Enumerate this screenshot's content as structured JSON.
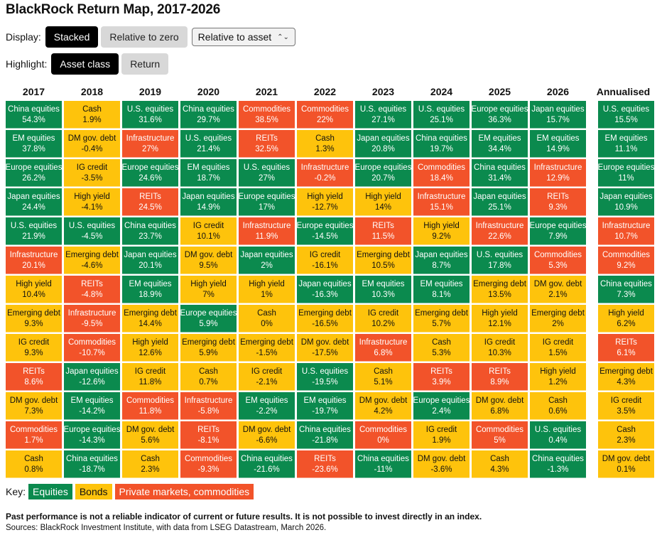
{
  "title": "BlackRock Return Map, 2017-2026",
  "controls": {
    "display_label": "Display:",
    "display_options": [
      "Stacked",
      "Relative to zero"
    ],
    "display_selected": "Stacked",
    "relative_select_value": "Relative to asset",
    "highlight_label": "Highlight:",
    "highlight_options": [
      "Asset class",
      "Return"
    ],
    "highlight_selected": "Asset class"
  },
  "colors": {
    "equities": "#0b8a4e",
    "bonds": "#fec30c",
    "private": "#f2532a"
  },
  "key": {
    "label": "Key:",
    "items": [
      {
        "label": "Equities",
        "type": "equities"
      },
      {
        "label": "Bonds",
        "type": "bonds"
      },
      {
        "label": "Private markets, commodities",
        "type": "private"
      }
    ]
  },
  "footnote": "Past performance is not a reliable indicator of current or future results. It is not possible to invest directly in an index.",
  "source": "Sources: BlackRock Investment Institute, with data from LSEG Datastream, March 2026.",
  "chart_data": {
    "type": "table",
    "columns": [
      "2017",
      "2018",
      "2019",
      "2020",
      "2021",
      "2022",
      "2023",
      "2024",
      "2025",
      "2026",
      "Annualised"
    ],
    "asset_types": {
      "China equities": "equities",
      "EM equities": "equities",
      "Europe equities": "equities",
      "Japan equities": "equities",
      "U.S. equities": "equities",
      "Cash": "bonds",
      "DM gov. debt": "bonds",
      "IG credit": "bonds",
      "High yield": "bonds",
      "Emerging debt": "bonds",
      "Infrastructure": "private",
      "REITs": "private",
      "Commodities": "private"
    },
    "data": [
      [
        [
          "China equities",
          "54.3%"
        ],
        [
          "EM equities",
          "37.8%"
        ],
        [
          "Europe equities",
          "26.2%"
        ],
        [
          "Japan equities",
          "24.4%"
        ],
        [
          "U.S. equities",
          "21.9%"
        ],
        [
          "Infrastructure",
          "20.1%"
        ],
        [
          "High yield",
          "10.4%"
        ],
        [
          "Emerging debt",
          "9.3%"
        ],
        [
          "IG credit",
          "9.3%"
        ],
        [
          "REITs",
          "8.6%"
        ],
        [
          "DM gov. debt",
          "7.3%"
        ],
        [
          "Commodities",
          "1.7%"
        ],
        [
          "Cash",
          "0.8%"
        ]
      ],
      [
        [
          "Cash",
          "1.9%"
        ],
        [
          "DM gov. debt",
          "-0.4%"
        ],
        [
          "IG credit",
          "-3.5%"
        ],
        [
          "High yield",
          "-4.1%"
        ],
        [
          "U.S. equities",
          "-4.5%"
        ],
        [
          "Emerging debt",
          "-4.6%"
        ],
        [
          "REITs",
          "-4.8%"
        ],
        [
          "Infrastructure",
          "-9.5%"
        ],
        [
          "Commodities",
          "-10.7%"
        ],
        [
          "Japan equities",
          "-12.6%"
        ],
        [
          "EM equities",
          "-14.2%"
        ],
        [
          "Europe equities",
          "-14.3%"
        ],
        [
          "China equities",
          "-18.7%"
        ]
      ],
      [
        [
          "U.S. equities",
          "31.6%"
        ],
        [
          "Infrastructure",
          "27%"
        ],
        [
          "Europe equities",
          "24.6%"
        ],
        [
          "REITs",
          "24.5%"
        ],
        [
          "China equities",
          "23.7%"
        ],
        [
          "Japan equities",
          "20.1%"
        ],
        [
          "EM equities",
          "18.9%"
        ],
        [
          "Emerging debt",
          "14.4%"
        ],
        [
          "High yield",
          "12.6%"
        ],
        [
          "IG credit",
          "11.8%"
        ],
        [
          "Commodities",
          "11.8%"
        ],
        [
          "DM gov. debt",
          "5.6%"
        ],
        [
          "Cash",
          "2.3%"
        ]
      ],
      [
        [
          "China equities",
          "29.7%"
        ],
        [
          "U.S. equities",
          "21.4%"
        ],
        [
          "EM equities",
          "18.7%"
        ],
        [
          "Japan equities",
          "14.9%"
        ],
        [
          "IG credit",
          "10.1%"
        ],
        [
          "DM gov. debt",
          "9.5%"
        ],
        [
          "High yield",
          "7%"
        ],
        [
          "Europe equities",
          "5.9%"
        ],
        [
          "Emerging debt",
          "5.9%"
        ],
        [
          "Cash",
          "0.7%"
        ],
        [
          "Infrastructure",
          "-5.8%"
        ],
        [
          "REITs",
          "-8.1%"
        ],
        [
          "Commodities",
          "-9.3%"
        ]
      ],
      [
        [
          "Commodities",
          "38.5%"
        ],
        [
          "REITs",
          "32.5%"
        ],
        [
          "U.S. equities",
          "27%"
        ],
        [
          "Europe equities",
          "17%"
        ],
        [
          "Infrastructure",
          "11.9%"
        ],
        [
          "Japan equities",
          "2%"
        ],
        [
          "High yield",
          "1%"
        ],
        [
          "Cash",
          "0%"
        ],
        [
          "Emerging debt",
          "-1.5%"
        ],
        [
          "IG credit",
          "-2.1%"
        ],
        [
          "EM equities",
          "-2.2%"
        ],
        [
          "DM gov. debt",
          "-6.6%"
        ],
        [
          "China equities",
          "-21.6%"
        ]
      ],
      [
        [
          "Commodities",
          "22%"
        ],
        [
          "Cash",
          "1.3%"
        ],
        [
          "Infrastructure",
          "-0.2%"
        ],
        [
          "High yield",
          "-12.7%"
        ],
        [
          "Europe equities",
          "-14.5%"
        ],
        [
          "IG credit",
          "-16.1%"
        ],
        [
          "Japan equities",
          "-16.3%"
        ],
        [
          "Emerging debt",
          "-16.5%"
        ],
        [
          "DM gov. debt",
          "-17.5%"
        ],
        [
          "U.S. equities",
          "-19.5%"
        ],
        [
          "EM equities",
          "-19.7%"
        ],
        [
          "China equities",
          "-21.8%"
        ],
        [
          "REITs",
          "-23.6%"
        ]
      ],
      [
        [
          "U.S. equities",
          "27.1%"
        ],
        [
          "Japan equities",
          "20.8%"
        ],
        [
          "Europe equities",
          "20.7%"
        ],
        [
          "High yield",
          "14%"
        ],
        [
          "REITs",
          "11.5%"
        ],
        [
          "Emerging debt",
          "10.5%"
        ],
        [
          "EM equities",
          "10.3%"
        ],
        [
          "IG credit",
          "10.2%"
        ],
        [
          "Infrastructure",
          "6.8%"
        ],
        [
          "Cash",
          "5.1%"
        ],
        [
          "DM gov. debt",
          "4.2%"
        ],
        [
          "Commodities",
          "0%"
        ],
        [
          "China equities",
          "-11%"
        ]
      ],
      [
        [
          "U.S. equities",
          "25.1%"
        ],
        [
          "China equities",
          "19.7%"
        ],
        [
          "Commodities",
          "18.4%"
        ],
        [
          "Infrastructure",
          "15.1%"
        ],
        [
          "High yield",
          "9.2%"
        ],
        [
          "Japan equities",
          "8.7%"
        ],
        [
          "EM equities",
          "8.1%"
        ],
        [
          "Emerging debt",
          "5.7%"
        ],
        [
          "Cash",
          "5.3%"
        ],
        [
          "REITs",
          "3.9%"
        ],
        [
          "Europe equities",
          "2.4%"
        ],
        [
          "IG credit",
          "1.9%"
        ],
        [
          "DM gov. debt",
          "-3.6%"
        ]
      ],
      [
        [
          "Europe equities",
          "36.3%"
        ],
        [
          "EM equities",
          "34.4%"
        ],
        [
          "China equities",
          "31.4%"
        ],
        [
          "Japan equities",
          "25.1%"
        ],
        [
          "Infrastructure",
          "22.6%"
        ],
        [
          "U.S. equities",
          "17.8%"
        ],
        [
          "Emerging debt",
          "13.5%"
        ],
        [
          "High yield",
          "12.1%"
        ],
        [
          "IG credit",
          "10.3%"
        ],
        [
          "REITs",
          "8.9%"
        ],
        [
          "DM gov. debt",
          "6.8%"
        ],
        [
          "Commodities",
          "5%"
        ],
        [
          "Cash",
          "4.3%"
        ]
      ],
      [
        [
          "Japan equities",
          "15.7%"
        ],
        [
          "EM equities",
          "14.9%"
        ],
        [
          "Infrastructure",
          "12.9%"
        ],
        [
          "REITs",
          "9.3%"
        ],
        [
          "Europe equities",
          "7.9%"
        ],
        [
          "Commodities",
          "5.3%"
        ],
        [
          "DM gov. debt",
          "2.1%"
        ],
        [
          "Emerging debt",
          "2%"
        ],
        [
          "IG credit",
          "1.5%"
        ],
        [
          "High yield",
          "1.2%"
        ],
        [
          "Cash",
          "0.6%"
        ],
        [
          "U.S. equities",
          "0.4%"
        ],
        [
          "China equities",
          "-1.3%"
        ]
      ],
      [
        [
          "U.S. equities",
          "15.5%"
        ],
        [
          "EM equities",
          "11.1%"
        ],
        [
          "Europe equities",
          "11%"
        ],
        [
          "Japan equities",
          "10.9%"
        ],
        [
          "Infrastructure",
          "10.7%"
        ],
        [
          "Commodities",
          "9.2%"
        ],
        [
          "China equities",
          "7.3%"
        ],
        [
          "High yield",
          "6.2%"
        ],
        [
          "REITs",
          "6.1%"
        ],
        [
          "Emerging debt",
          "4.3%"
        ],
        [
          "IG credit",
          "3.5%"
        ],
        [
          "Cash",
          "2.3%"
        ],
        [
          "DM gov. debt",
          "0.1%"
        ]
      ]
    ]
  }
}
